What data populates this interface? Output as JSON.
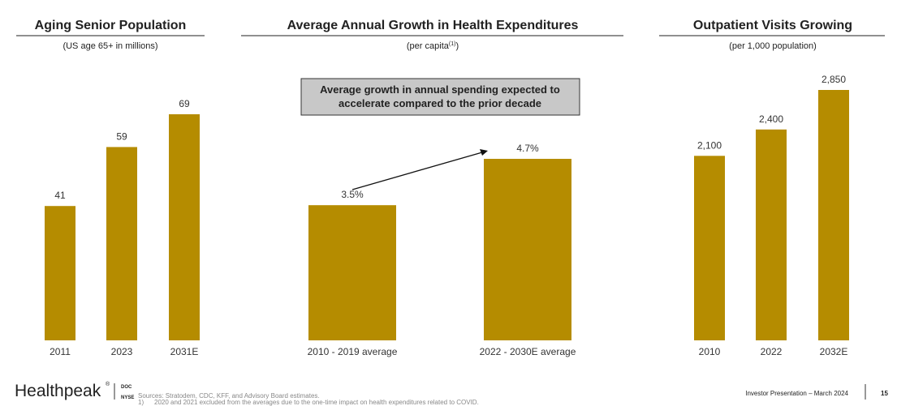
{
  "chart_data": [
    {
      "type": "bar",
      "title": "Aging Senior Population",
      "subtitle": [
        "(US age 65+ in millions)"
      ],
      "categories": [
        "2011",
        "2023",
        "2031E"
      ],
      "values": [
        41,
        59,
        69
      ],
      "color": "#b58c00"
    },
    {
      "type": "bar",
      "title": "Average Annual Growth in Health Expenditures",
      "subtitle": [
        "(per capita",
        "(1)",
        ")"
      ],
      "categories": [
        "2010 - 2019 average",
        "2022 - 2030E average"
      ],
      "values": [
        3.5,
        4.7
      ],
      "value_labels": [
        "3.5%",
        "4.7%"
      ],
      "annotation": [
        "Average growth in annual spending expected to",
        "accelerate compared to the prior decade"
      ],
      "color": "#b58c00"
    },
    {
      "type": "bar",
      "title": "Outpatient Visits Growing",
      "subtitle": [
        "(per 1,000 population)"
      ],
      "categories": [
        "2010",
        "2022",
        "2032E"
      ],
      "values": [
        2100,
        2400,
        2850
      ],
      "value_labels": [
        "2,100",
        "2,400",
        "2,850"
      ],
      "color": "#b58c00"
    }
  ],
  "footer": {
    "brand": "Healthpeak",
    "brand_mark": "®",
    "ticker": "DOC",
    "exchange": "NYSE",
    "sources": "Sources: Stratodem, CDC, KFF, and Advisory Board estimates.",
    "note_number": "1)",
    "note": "2020 and 2021 excluded from the averages due to the one-time impact on health expenditures related to COVID.",
    "presentation": "Investor Presentation – March 2024",
    "page": "15"
  }
}
